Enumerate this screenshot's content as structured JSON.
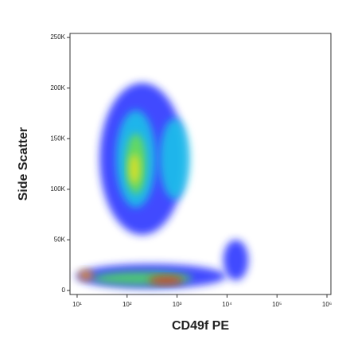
{
  "chart_data": {
    "type": "density",
    "x_label": "CD49f PE",
    "y_label": "Side Scatter",
    "x_scale": "log",
    "xlim": [
      7.2,
      1200000
    ],
    "xticks": [
      {
        "value": 10,
        "label": "10¹"
      },
      {
        "value": 100,
        "label": "10²"
      },
      {
        "value": 1000,
        "label": "10³"
      },
      {
        "value": 10000,
        "label": "10⁴"
      },
      {
        "value": 100000,
        "label": "10⁵"
      },
      {
        "value": 1000000,
        "label": "10⁶"
      }
    ],
    "ylim": [
      -4000,
      254000
    ],
    "yticks": [
      0,
      {
        "value": 50000,
        "label": "50K"
      },
      {
        "value": 100000,
        "label": "100K"
      },
      {
        "value": 150000,
        "label": "150K"
      },
      {
        "value": 200000,
        "label": "200K"
      },
      {
        "value": 250000,
        "label": "250K"
      }
    ],
    "regions": [
      {
        "x": 200,
        "y": 130000,
        "rx": 0.85,
        "ry": 75000,
        "color": "#1f2cff"
      },
      {
        "x": 300,
        "y": 14000,
        "rx": 1.5,
        "ry": 12000,
        "color": "#1f2cff"
      },
      {
        "x": 15000,
        "y": 30000,
        "rx": 0.25,
        "ry": 20000,
        "color": "#1f2cff"
      },
      {
        "x": 150,
        "y": 130000,
        "rx": 0.4,
        "ry": 48000,
        "color": "#18c8e8"
      },
      {
        "x": 900,
        "y": 130000,
        "rx": 0.3,
        "ry": 40000,
        "color": "#18c8e8"
      },
      {
        "x": 200,
        "y": 12000,
        "rx": 1.0,
        "ry": 7000,
        "color": "#50d860"
      },
      {
        "x": 150,
        "y": 125000,
        "rx": 0.2,
        "ry": 30000,
        "color": "#6ede4a"
      },
      {
        "x": 140,
        "y": 120000,
        "rx": 0.1,
        "ry": 15000,
        "color": "#f0e020"
      },
      {
        "x": 15,
        "y": 15000,
        "rx": 0.15,
        "ry": 5000,
        "color": "#f09010"
      },
      {
        "x": 600,
        "y": 10000,
        "rx": 0.35,
        "ry": 4000,
        "color": "#e83010"
      }
    ]
  }
}
